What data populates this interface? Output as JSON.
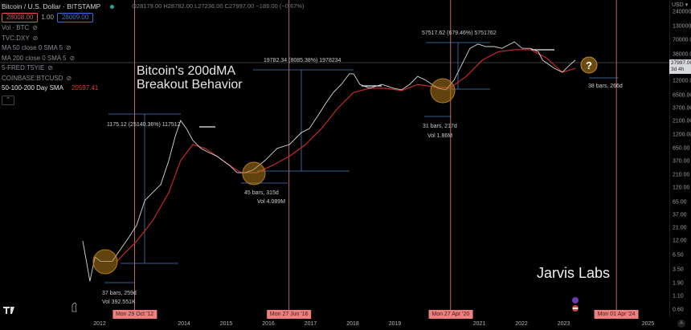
{
  "header": {
    "title": "Bitcoin / U.S. Dollar · BITSTAMP",
    "ohlc": "O28179.00 H28782.00 L27236.00 C27997.00 −189.00 (−0.67%)",
    "bid": "28008.00",
    "spread": "1.00",
    "ask": "28009.00"
  },
  "indicators": [
    {
      "label": "Vol · BTC",
      "icon": "eye-off-icon"
    },
    {
      "label": "TVC:DXY",
      "icon": "eye-off-icon"
    },
    {
      "label": "MA 50 close 0 SMA 5",
      "icon": "eye-off-icon"
    },
    {
      "label": "MA 200 close 0 SMA 5",
      "icon": "eye-off-icon"
    },
    {
      "label": "5-FRED:T5YIE",
      "icon": "eye-off-icon"
    },
    {
      "label": "COINBASE:BTCUSD",
      "icon": "eye-off-icon"
    }
  ],
  "sma": {
    "label": "50-100-200 Day SMA",
    "value": "20597.41",
    "color": "#e53935"
  },
  "collapse_icon": "chevron-up-icon",
  "headline": "Bitcoin's 200dMA\nBreakout Behavior",
  "brand": "Jarvis Labs",
  "question_mark": "?",
  "annotations": {
    "m1_price": "1175.12 (25140.36%) 117512",
    "m1_time": "37 bars, 259d",
    "m1_vol": "Vol 392.551K",
    "m2_price": "19782.34 (8085.38%) 1978234",
    "m2_time": "45 bars, 315d",
    "m2_vol": "Vol 4.089M",
    "m3_price": "57517.62 (679.46%) 5751762",
    "m3_time": "31 bars, 217d",
    "m3_vol": "Vol 1.86M",
    "m4_time": "38 bars, 266d"
  },
  "price_axis": {
    "currency": "USD ▾",
    "current_price": "27997.00",
    "countdown": "3d 4h"
  },
  "colors": {
    "price_line": "#d9d9d9",
    "ma200": "#c62828",
    "measure": "#4a7ab8",
    "vline": "#f08080",
    "circle": "#b07a1e"
  },
  "chart_data": {
    "type": "line",
    "title": "",
    "xlabel": "",
    "ylabel": "",
    "y_scale": "log",
    "ylim": [
      0.6,
      240000
    ],
    "xlim": [
      2011.4,
      2025.4
    ],
    "grid": false,
    "y_ticks": [
      "240000.00",
      "130000.00",
      "70000.00",
      "38000.00",
      "12000.00",
      "6500.00",
      "3700.00",
      "2100.00",
      "1200.00",
      "650.00",
      "370.00",
      "210.00",
      "120.00",
      "65.00",
      "37.00",
      "21.00",
      "12.00",
      "6.50",
      "3.50",
      "1.90",
      "1.10",
      "0.60"
    ],
    "x_ticks": [
      "2012",
      "2014",
      "2015",
      "2016",
      "2017",
      "2018",
      "2019",
      "2021",
      "2022",
      "2023",
      "2025"
    ],
    "x_ticks_hidden_values": [
      2012,
      2014,
      2015,
      2016,
      2017,
      2018,
      2019,
      2021,
      2022,
      2023,
      2025
    ],
    "date_markers": [
      {
        "label": "Mon 29 Oct '12",
        "x": 2012.83
      },
      {
        "label": "Mon 27 Jun '16",
        "x": 2016.49
      },
      {
        "label": "Mon 27 Apr '20",
        "x": 2020.32
      },
      {
        "label": "Mon 01 Apr '24",
        "x": 2024.25
      }
    ],
    "series": [
      {
        "x": [
          2011.6,
          2011.7,
          2011.77,
          2011.89,
          2012.02,
          2012.3,
          2012.5,
          2012.69,
          2012.88,
          2013.07,
          2013.26,
          2013.45,
          2013.64,
          2013.79,
          2013.92,
          2014.06,
          2014.21,
          2014.4,
          2014.59,
          2014.78,
          2015.07,
          2015.26,
          2015.45,
          2015.64,
          2015.92,
          2016.21,
          2016.5,
          2016.78,
          2016.97,
          2017.16,
          2017.35,
          2017.54,
          2017.73,
          2017.92,
          2018.02,
          2018.17,
          2018.4,
          2018.69,
          2018.97,
          2019.16,
          2019.35,
          2019.54,
          2019.73,
          2020.02,
          2020.21,
          2020.4,
          2020.59,
          2020.78,
          2020.97,
          2021.16,
          2021.35,
          2021.54,
          2021.73,
          2021.83,
          2022.02,
          2022.21,
          2022.4,
          2022.5,
          2022.78,
          2022.97,
          2023.16,
          2023.28
        ],
        "values": [
          12,
          4.3,
          2.1,
          6.0,
          5.0,
          5.0,
          8.5,
          14,
          24,
          69,
          98,
          138,
          390,
          1100,
          2200,
          1550,
          930,
          660,
          550,
          470,
          320,
          230,
          230,
          260,
          390,
          660,
          780,
          1300,
          1550,
          2600,
          4500,
          7400,
          10500,
          16600,
          16600,
          10500,
          8900,
          10500,
          8900,
          8300,
          10500,
          14800,
          12600,
          8900,
          8300,
          12600,
          25000,
          50000,
          60000,
          54000,
          54000,
          50000,
          60000,
          66000,
          50000,
          50000,
          43000,
          30000,
          21000,
          17800,
          25000,
          30000
        ],
        "color": "#d9d9d9"
      },
      {
        "x": [
          2012.4,
          2012.88,
          2013.26,
          2013.64,
          2013.92,
          2014.21,
          2014.5,
          2014.78,
          2015.07,
          2015.35,
          2015.73,
          2016.11,
          2016.5,
          2016.88,
          2017.26,
          2017.64,
          2018.02,
          2018.4,
          2018.78,
          2019.16,
          2019.54,
          2019.92,
          2020.3,
          2020.69,
          2021.07,
          2021.45,
          2021.83,
          2022.21,
          2022.59,
          2022.97,
          2023.28
        ],
        "values": [
          4.9,
          12,
          29,
          98,
          390,
          780,
          660,
          470,
          320,
          230,
          230,
          320,
          470,
          780,
          1550,
          3700,
          7400,
          8900,
          8900,
          8000,
          10500,
          9500,
          8900,
          14800,
          30000,
          43000,
          47000,
          47000,
          33000,
          17800,
          21000
        ],
        "color": "#c62828"
      }
    ]
  }
}
